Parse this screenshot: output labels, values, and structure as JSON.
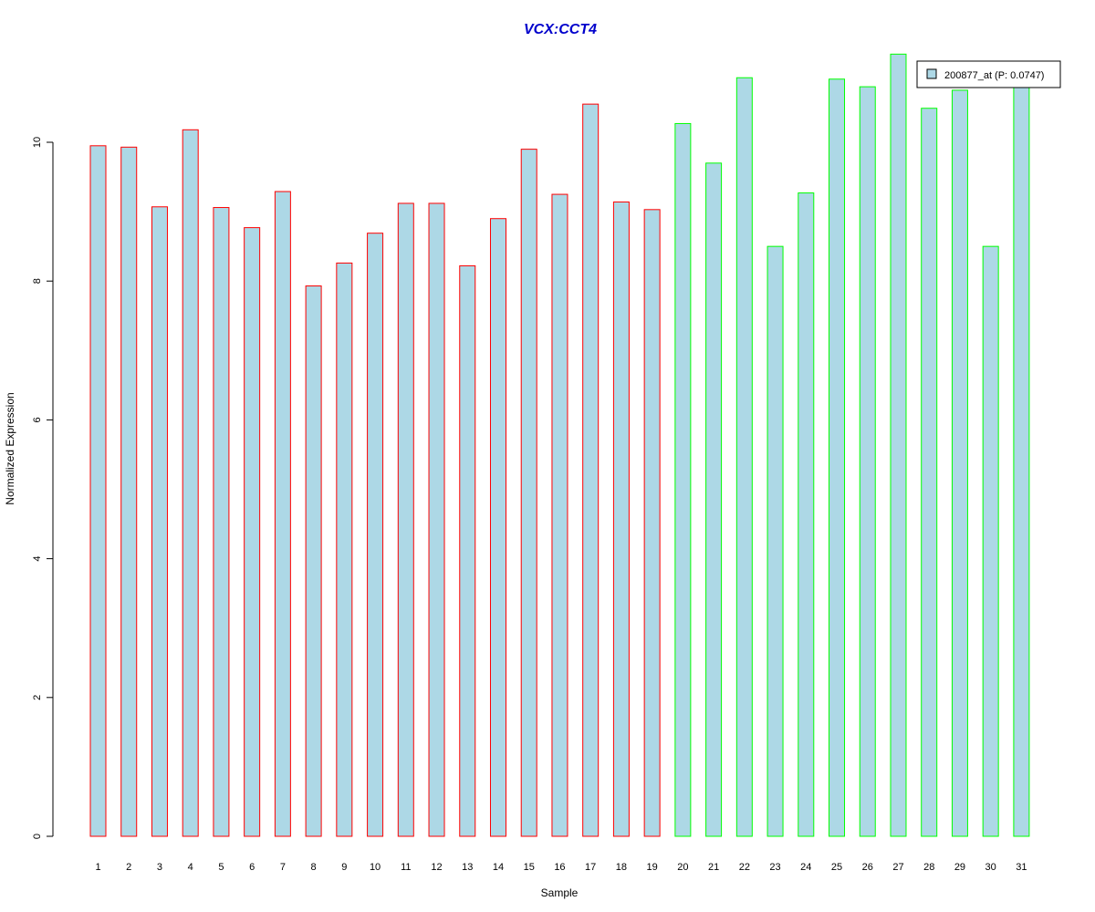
{
  "chart_data": {
    "type": "bar",
    "title": "VCX:CCT4",
    "title_color": "#0000CC",
    "xlabel": "Sample",
    "ylabel": "Normalized Expression",
    "ylim": [
      0,
      11.3
    ],
    "yticks": [
      0,
      2,
      4,
      6,
      8,
      10
    ],
    "grid": false,
    "legend_position": "top-right",
    "categories": [
      "1",
      "2",
      "3",
      "4",
      "5",
      "6",
      "7",
      "8",
      "9",
      "10",
      "11",
      "12",
      "13",
      "14",
      "15",
      "16",
      "17",
      "18",
      "19",
      "20",
      "21",
      "22",
      "23",
      "24",
      "25",
      "26",
      "27",
      "28",
      "29",
      "30",
      "31"
    ],
    "series": [
      {
        "name": "200877_at (P: 0.0747)",
        "fill": "#ADD8E6",
        "values": [
          9.95,
          9.93,
          9.07,
          10.18,
          9.06,
          8.77,
          9.29,
          7.93,
          8.26,
          8.69,
          9.12,
          9.12,
          8.22,
          8.9,
          9.9,
          9.25,
          10.55,
          9.14,
          9.03,
          10.27,
          9.7,
          10.93,
          8.5,
          9.27,
          10.91,
          10.8,
          11.27,
          10.49,
          10.75,
          8.5,
          10.8
        ],
        "border_colors": [
          "#FF0000",
          "#FF0000",
          "#FF0000",
          "#FF0000",
          "#FF0000",
          "#FF0000",
          "#FF0000",
          "#FF0000",
          "#FF0000",
          "#FF0000",
          "#FF0000",
          "#FF0000",
          "#FF0000",
          "#FF0000",
          "#FF0000",
          "#FF0000",
          "#FF0000",
          "#FF0000",
          "#FF0000",
          "#00FF00",
          "#00FF00",
          "#00FF00",
          "#00FF00",
          "#00FF00",
          "#00FF00",
          "#00FF00",
          "#00FF00",
          "#00FF00",
          "#00FF00",
          "#00FF00",
          "#00FF00"
        ]
      }
    ]
  }
}
